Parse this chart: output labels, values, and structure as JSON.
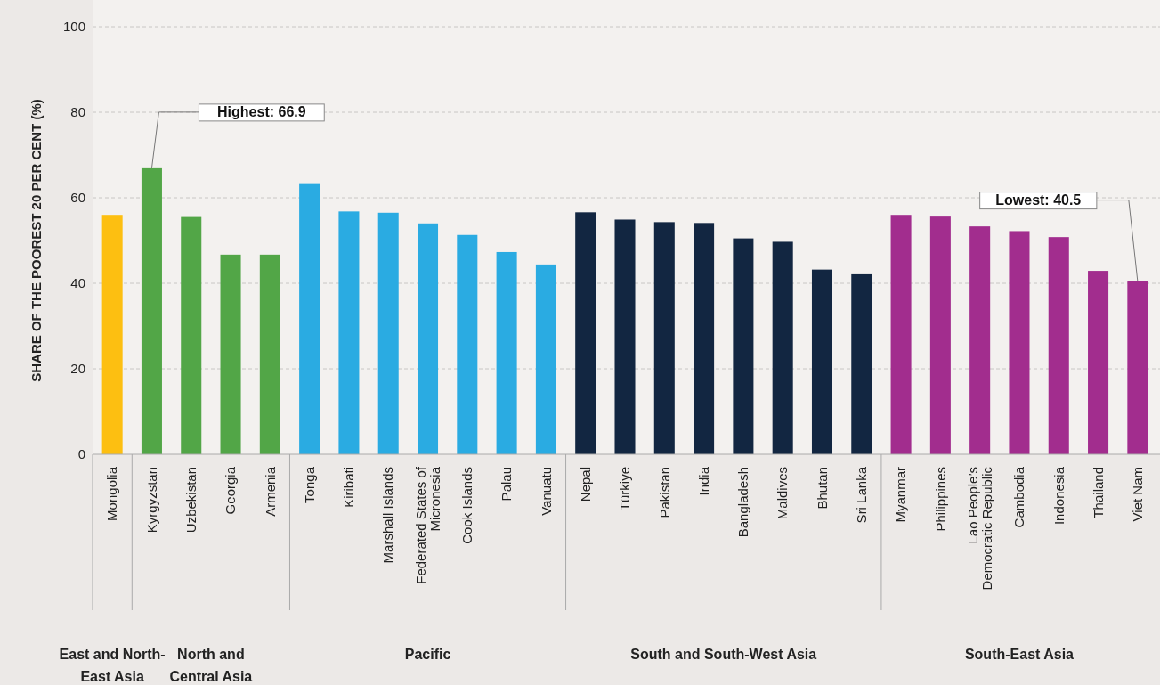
{
  "chart_data": {
    "type": "bar",
    "ylabel": "SHARE OF THE POOREST 20 PER CENT (%)",
    "categories": [
      "Mongolia",
      "Kyrgyzstan",
      "Uzbekistan",
      "Georgia",
      "Armenia",
      "Tonga",
      "Kiribati",
      "Marshall Islands",
      "Federated States of Micronesia",
      "Cook Islands",
      "Palau",
      "Vanuatu",
      "Nepal",
      "Türkiye",
      "Pakistan",
      "India",
      "Bangladesh",
      "Maldives",
      "Bhutan",
      "Sri Lanka",
      "Myanmar",
      "Philippines",
      "Lao People’s Democratic Republic",
      "Cambodia",
      "Indonesia",
      "Thailand",
      "Viet Nam"
    ],
    "values": [
      56.0,
      66.9,
      55.5,
      46.7,
      46.7,
      63.2,
      56.8,
      56.5,
      54.0,
      51.3,
      47.3,
      44.4,
      56.6,
      54.9,
      54.3,
      54.1,
      50.5,
      49.7,
      43.2,
      42.1,
      56.0,
      55.6,
      53.3,
      52.2,
      50.8,
      42.9,
      40.5
    ],
    "colors": [
      "#fdbf11",
      "#52a647",
      "#52a647",
      "#52a647",
      "#52a647",
      "#2aabe2",
      "#2aabe2",
      "#2aabe2",
      "#2aabe2",
      "#2aabe2",
      "#2aabe2",
      "#2aabe2",
      "#122641",
      "#122641",
      "#122641",
      "#122641",
      "#122641",
      "#122641",
      "#122641",
      "#122641",
      "#a22d8e",
      "#a22d8e",
      "#a22d8e",
      "#a22d8e",
      "#a22d8e",
      "#a22d8e",
      "#a22d8e"
    ],
    "ylim": [
      0,
      100
    ],
    "yticks": [
      0,
      20,
      40,
      60,
      80,
      100
    ],
    "grid": "y",
    "annotations": [
      "East and North-East Asia",
      "North and Central Asia",
      "Pacific",
      "South and South-West Asia",
      "South-East Asia",
      {
        "text": "Highest: 66.9",
        "x": "Kyrgyzstan",
        "y": 66.9
      },
      {
        "text": "Lowest: 40.5",
        "x": "Viet Nam",
        "y": 40.5
      }
    ]
  }
}
